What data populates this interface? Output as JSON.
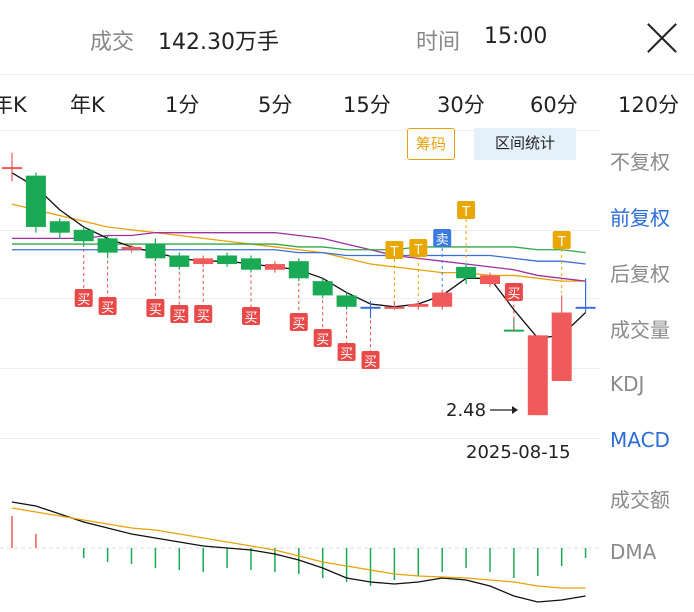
{
  "header": {
    "volume_label": "成交",
    "volume_value": "142.30万手",
    "time_label": "时间",
    "time_value": "15:00"
  },
  "tabs": [
    {
      "label": "年K"
    },
    {
      "label": "年K"
    },
    {
      "label": "1分"
    },
    {
      "label": "5分"
    },
    {
      "label": "15分"
    },
    {
      "label": "30分"
    },
    {
      "label": "60分"
    },
    {
      "label": "120分"
    }
  ],
  "chips": {
    "chips_label": "筹码",
    "range_stats_label": "区间统计"
  },
  "sidebar": {
    "items": [
      {
        "label": "不复权",
        "active": false
      },
      {
        "label": "前复权",
        "active": true
      },
      {
        "label": "后复权",
        "active": false
      },
      {
        "label": "成交量",
        "active": false
      },
      {
        "label": "KDJ",
        "active": false
      },
      {
        "label": "MACD",
        "active": true
      },
      {
        "label": "成交额",
        "active": false
      },
      {
        "label": "DMA",
        "active": false
      }
    ]
  },
  "annotations": {
    "low_price": "2.48",
    "date": "2025-08-15"
  },
  "markers": {
    "buy": "买",
    "sell": "卖",
    "t": "T"
  },
  "colors": {
    "up": "#f05a5a",
    "down": "#1aaa55",
    "ma_black": "#111111",
    "ma_orange": "#e8a20c",
    "ma_purple": "#a030a0",
    "ma_green": "#2ea84a",
    "ma_blue": "#3a6fd8",
    "buy_badge": "#e84a4a",
    "sell_badge": "#3a7be0",
    "t_badge": "#e8a800",
    "active_blue": "#2b6cd8"
  },
  "chart_data": {
    "type": "candlestick",
    "candles": [
      {
        "o": 3.35,
        "c": 3.35,
        "h": 3.4,
        "l": 3.3,
        "dir": "up"
      },
      {
        "o": 3.32,
        "c": 3.14,
        "h": 3.33,
        "l": 3.12,
        "dir": "down"
      },
      {
        "o": 3.16,
        "c": 3.12,
        "h": 3.17,
        "l": 3.1,
        "dir": "down"
      },
      {
        "o": 3.13,
        "c": 3.09,
        "h": 3.14,
        "l": 3.07,
        "dir": "down"
      },
      {
        "o": 3.1,
        "c": 3.05,
        "h": 3.11,
        "l": 3.03,
        "dir": "down"
      },
      {
        "o": 3.06,
        "c": 3.07,
        "h": 3.08,
        "l": 3.05,
        "dir": "up"
      },
      {
        "o": 3.08,
        "c": 3.03,
        "h": 3.1,
        "l": 3.02,
        "dir": "down"
      },
      {
        "o": 3.04,
        "c": 3.0,
        "h": 3.05,
        "l": 2.99,
        "dir": "down"
      },
      {
        "o": 3.01,
        "c": 3.03,
        "h": 3.04,
        "l": 3.0,
        "dir": "up"
      },
      {
        "o": 3.04,
        "c": 3.01,
        "h": 3.05,
        "l": 3.0,
        "dir": "down"
      },
      {
        "o": 3.03,
        "c": 2.99,
        "h": 3.04,
        "l": 2.98,
        "dir": "down"
      },
      {
        "o": 2.99,
        "c": 3.01,
        "h": 3.02,
        "l": 2.98,
        "dir": "up"
      },
      {
        "o": 3.02,
        "c": 2.96,
        "h": 3.03,
        "l": 2.95,
        "dir": "down"
      },
      {
        "o": 2.95,
        "c": 2.9,
        "h": 2.96,
        "l": 2.89,
        "dir": "down"
      },
      {
        "o": 2.9,
        "c": 2.86,
        "h": 2.91,
        "l": 2.85,
        "dir": "down"
      },
      {
        "o": 2.86,
        "c": 2.86,
        "h": 2.88,
        "l": 2.82,
        "dir": "cross"
      },
      {
        "o": 2.86,
        "c": 2.86,
        "h": 2.88,
        "l": 2.85,
        "dir": "up"
      },
      {
        "o": 2.86,
        "c": 2.87,
        "h": 2.88,
        "l": 2.85,
        "dir": "up"
      },
      {
        "o": 2.86,
        "c": 2.91,
        "h": 2.92,
        "l": 2.85,
        "dir": "up"
      },
      {
        "o": 3.0,
        "c": 2.96,
        "h": 3.01,
        "l": 2.94,
        "dir": "down"
      },
      {
        "o": 2.94,
        "c": 2.97,
        "h": 2.98,
        "l": 2.93,
        "dir": "up"
      },
      {
        "o": 2.78,
        "c": 2.78,
        "h": 2.82,
        "l": 2.78,
        "dir": "flat-green"
      },
      {
        "o": 2.48,
        "c": 2.76,
        "h": 2.76,
        "l": 2.48,
        "dir": "up"
      },
      {
        "o": 2.6,
        "c": 2.84,
        "h": 2.9,
        "l": 2.6,
        "dir": "up"
      },
      {
        "o": 2.86,
        "c": 2.86,
        "h": 2.96,
        "l": 2.84,
        "dir": "cross"
      }
    ],
    "low_price": 2.48,
    "date": "2025-08-15"
  }
}
